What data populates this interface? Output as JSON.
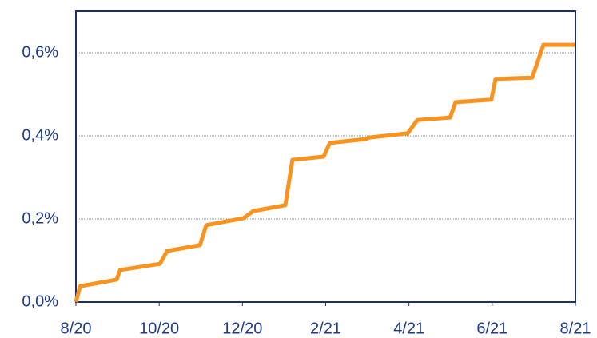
{
  "chart_data": {
    "type": "line",
    "x": [
      0,
      0.1,
      0.98,
      1.06,
      2.02,
      2.19,
      2.98,
      3.13,
      4.03,
      4.26,
      5.03,
      5.2,
      5.95,
      6.1,
      6.95,
      7.05,
      7.97,
      8.2,
      8.99,
      9.12,
      9.98,
      10.08,
      10.96,
      11.23,
      12
    ],
    "series": [
      {
        "color": "#f7931e",
        "values": [
          0,
          0.038,
          0.054,
          0.077,
          0.092,
          0.123,
          0.137,
          0.185,
          0.202,
          0.219,
          0.233,
          0.342,
          0.35,
          0.383,
          0.392,
          0.396,
          0.406,
          0.438,
          0.444,
          0.481,
          0.487,
          0.537,
          0.54,
          0.619,
          0.619
        ]
      }
    ],
    "xlim": [
      0,
      12
    ],
    "xticks": [
      {
        "value": 0,
        "label": "8/20"
      },
      {
        "value": 2,
        "label": "10/20"
      },
      {
        "value": 4,
        "label": "12/20"
      },
      {
        "value": 6,
        "label": "2/21"
      },
      {
        "value": 8,
        "label": "4/21"
      },
      {
        "value": 10,
        "label": "6/21"
      },
      {
        "value": 12,
        "label": "8/21"
      }
    ],
    "ylim": [
      0,
      0.7
    ],
    "yticks": [
      {
        "value": 0,
        "label": "0,0%"
      },
      {
        "value": 0.2,
        "label": "0,2%"
      },
      {
        "value": 0.4,
        "label": "0,4%"
      },
      {
        "value": 0.6,
        "label": "0,6%"
      }
    ],
    "grid": true
  }
}
